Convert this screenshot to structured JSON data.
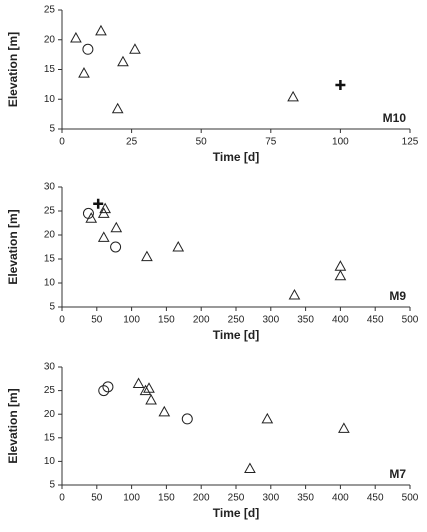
{
  "chart_data": [
    {
      "type": "scatter",
      "xlabel": "Time [d]",
      "ylabel": "Elevation [m]",
      "annotation": "M10",
      "xlim": [
        0,
        125
      ],
      "xticks": [
        0,
        25,
        50,
        75,
        100,
        125
      ],
      "ylim": [
        5,
        25
      ],
      "yticks": [
        5,
        10,
        15,
        20,
        25
      ],
      "series": [
        {
          "marker": "triangle",
          "color": "#222222",
          "x": [
            5,
            7.9,
            14,
            20,
            21.9,
            26.2,
            83
          ],
          "values": [
            20.3,
            14.4,
            21.5,
            8.4,
            16.3,
            18.4,
            10.4
          ]
        },
        {
          "marker": "circle",
          "color": "#222222",
          "x": [
            9.3
          ],
          "values": [
            18.4
          ]
        },
        {
          "marker": "plus",
          "color": "#111111",
          "x": [
            100
          ],
          "values": [
            12.4
          ]
        }
      ]
    },
    {
      "type": "scatter",
      "xlabel": "Time [d]",
      "ylabel": "Elevation [m]",
      "annotation": "M9",
      "xlim": [
        0,
        500
      ],
      "xticks": [
        0,
        50,
        100,
        150,
        200,
        250,
        300,
        350,
        400,
        450,
        500
      ],
      "ylim": [
        5,
        30
      ],
      "yticks": [
        5,
        10,
        15,
        20,
        25,
        30
      ],
      "series": [
        {
          "marker": "triangle",
          "color": "#222222",
          "x": [
            42,
            62,
            60,
            60,
            78,
            122,
            167,
            334,
            400,
            400
          ],
          "values": [
            23.5,
            25.5,
            24.5,
            19.5,
            21.5,
            15.5,
            17.5,
            7.5,
            13.5,
            11.5
          ]
        },
        {
          "marker": "circle",
          "color": "#222222",
          "x": [
            38,
            77
          ],
          "values": [
            24.5,
            17.5
          ]
        },
        {
          "marker": "plus",
          "color": "#111111",
          "x": [
            52
          ],
          "values": [
            26.5
          ]
        }
      ]
    },
    {
      "type": "scatter",
      "xlabel": "Time [d]",
      "ylabel": "Elevation [m]",
      "annotation": "M7",
      "xlim": [
        0,
        500
      ],
      "xticks": [
        0,
        50,
        100,
        150,
        200,
        250,
        300,
        350,
        400,
        450,
        500
      ],
      "ylim": [
        5,
        30
      ],
      "yticks": [
        5,
        10,
        15,
        20,
        25,
        30
      ],
      "series": [
        {
          "marker": "triangle",
          "color": "#222222",
          "x": [
            110,
            120,
            125,
            128,
            147,
            270,
            295,
            405
          ],
          "values": [
            26.5,
            25,
            25.5,
            23,
            20.5,
            8.5,
            19,
            17
          ]
        },
        {
          "marker": "circle",
          "color": "#222222",
          "x": [
            60,
            66,
            180
          ],
          "values": [
            25,
            25.8,
            19
          ]
        }
      ]
    }
  ]
}
